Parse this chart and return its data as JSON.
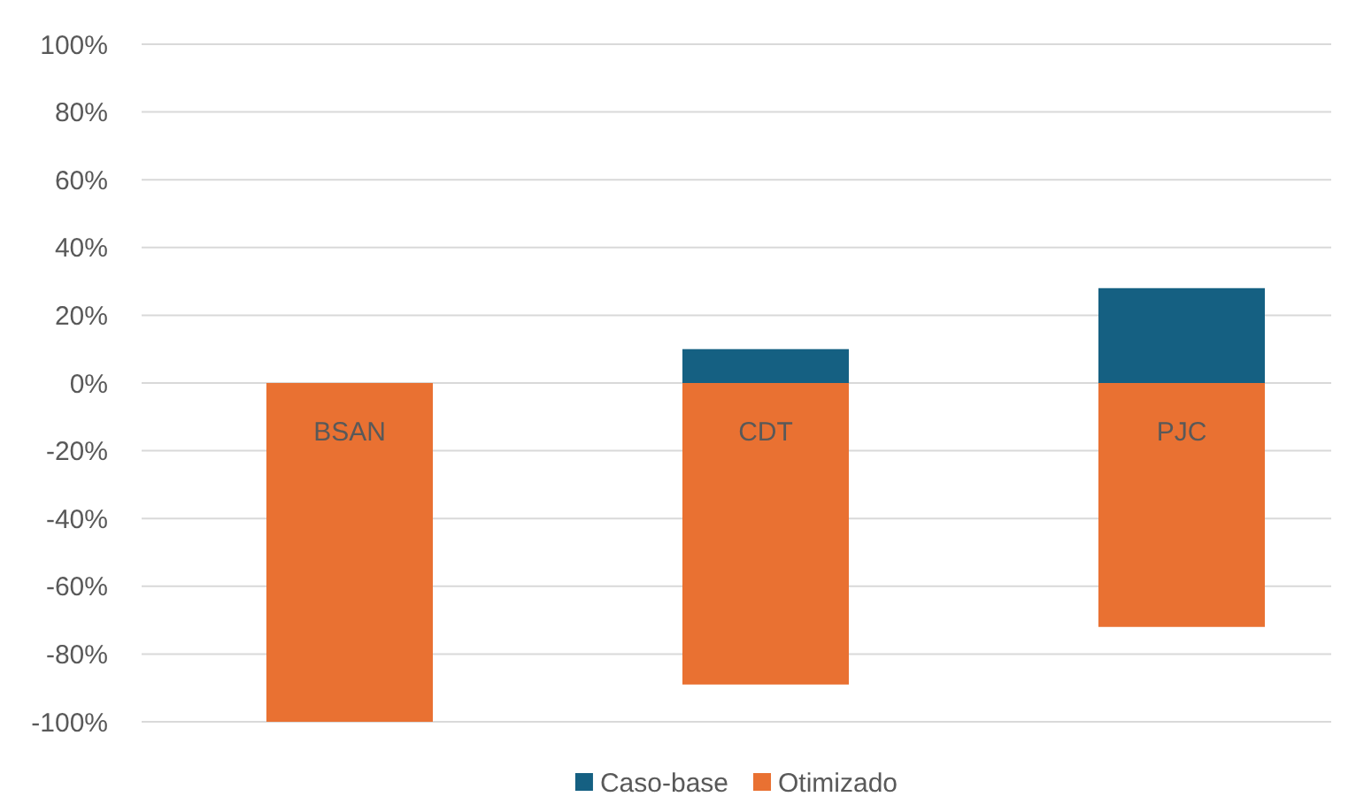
{
  "chart_data": {
    "type": "bar",
    "stacked": true,
    "categories": [
      "BSAN",
      "CDT",
      "PJC"
    ],
    "series": [
      {
        "name": "Caso-base",
        "color": "#156082",
        "values": [
          0,
          10,
          28
        ]
      },
      {
        "name": "Otimizado",
        "color": "#e97132",
        "values": [
          -100,
          -89,
          -72
        ]
      }
    ],
    "ylim": [
      -100,
      100
    ],
    "yticks": [
      {
        "value": -100,
        "label": "-100%"
      },
      {
        "value": -80,
        "label": "-80%"
      },
      {
        "value": -60,
        "label": "-60%"
      },
      {
        "value": -40,
        "label": "-40%"
      },
      {
        "value": -20,
        "label": "-20%"
      },
      {
        "value": 0,
        "label": "0%"
      },
      {
        "value": 20,
        "label": "20%"
      },
      {
        "value": 40,
        "label": "40%"
      },
      {
        "value": 60,
        "label": "60%"
      },
      {
        "value": 80,
        "label": "80%"
      },
      {
        "value": 100,
        "label": "100%"
      }
    ],
    "grid": "y",
    "legend": "bottom"
  }
}
